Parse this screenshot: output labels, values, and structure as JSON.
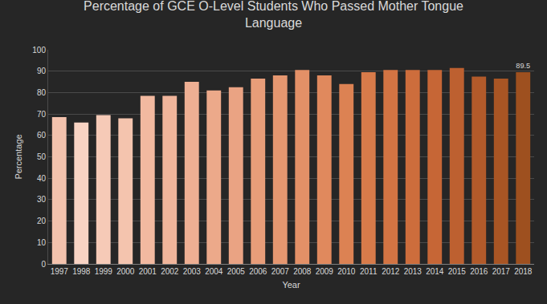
{
  "chart_data": {
    "type": "bar",
    "title": "Percentage of GCE O-Level Students Who Passed Mother Tongue Language",
    "x_label": "Year",
    "y_label": "Percentage",
    "categories": [
      "1997",
      "1998",
      "1999",
      "2000",
      "2001",
      "2002",
      "2003",
      "2004",
      "2005",
      "2006",
      "2007",
      "2008",
      "2009",
      "2010",
      "2011",
      "2012",
      "2013",
      "2014",
      "2015",
      "2016",
      "2017",
      "2018"
    ],
    "values": [
      68.5,
      66,
      69.5,
      68,
      78.5,
      78.5,
      85,
      81,
      82.5,
      86.5,
      88,
      90.5,
      88,
      84,
      89.5,
      90.5,
      90.5,
      90.5,
      91.5,
      87.5,
      86.5,
      89.5
    ],
    "value_labels": [
      null,
      null,
      null,
      null,
      null,
      null,
      null,
      null,
      null,
      null,
      null,
      null,
      null,
      null,
      null,
      null,
      null,
      null,
      null,
      null,
      null,
      "89.5"
    ],
    "data_labels": true,
    "colors": [
      "#f3c2ad",
      "#f8d3c3",
      "#f6cab7",
      "#f4c4ae",
      "#f2b9a0",
      "#f0b59b",
      "#eeaf93",
      "#eca98a",
      "#eaa383",
      "#e89d79",
      "#e59770",
      "#e39067",
      "#e0895d",
      "#dc8253",
      "#d87b4a",
      "#d37443",
      "#cd6d3c",
      "#c66636",
      "#bd6030",
      "#b25a2a",
      "#a85524",
      "#9e501f"
    ],
    "ylim": [
      0,
      100
    ],
    "yticks": [
      0,
      10,
      20,
      30,
      40,
      50,
      60,
      70,
      80,
      90,
      100
    ],
    "grid": true
  }
}
